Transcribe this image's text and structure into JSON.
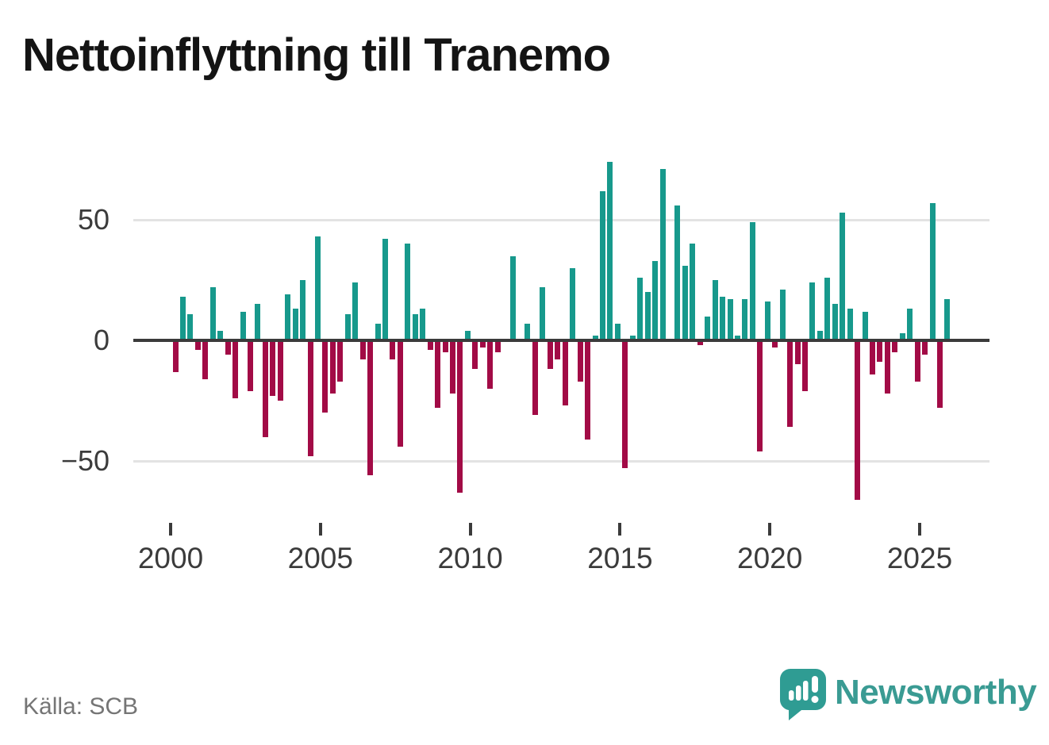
{
  "page": {
    "title": "Nettoinflyttning till Tranemo",
    "source": "Källa: SCB"
  },
  "branding": {
    "logo_text": "Newsworthy",
    "logo_color": "#3a9b93"
  },
  "chart_data": {
    "type": "bar",
    "title": "Nettoinflyttning till Tranemo",
    "frequency": "quarterly",
    "period_start": "2000-Q1",
    "period_end": "2025-Q4",
    "values": [
      -13,
      18,
      11,
      -4,
      -16,
      22,
      4,
      -6,
      -24,
      12,
      -21,
      15,
      -40,
      -23,
      -25,
      19,
      13,
      25,
      -48,
      43,
      -30,
      -22,
      -17,
      11,
      24,
      -8,
      -56,
      7,
      42,
      -8,
      -44,
      40,
      11,
      13,
      -4,
      -28,
      -5,
      -22,
      -63,
      4,
      -12,
      -3,
      -20,
      -5,
      0,
      35,
      0,
      7,
      -31,
      22,
      -12,
      -8,
      -27,
      30,
      -17,
      -41,
      2,
      62,
      74,
      7,
      -53,
      2,
      26,
      20,
      33,
      71,
      0,
      56,
      31,
      40,
      -2,
      10,
      25,
      18,
      17,
      2,
      17,
      49,
      -46,
      16,
      -3,
      21,
      -36,
      -10,
      -21,
      24,
      4,
      26,
      15,
      53,
      13,
      -66,
      12,
      -14,
      -9,
      -22,
      -5,
      3,
      13,
      -17,
      -6,
      57,
      -28,
      17
    ],
    "positive_color": "#17998c",
    "negative_color": "#a20b46",
    "yticks": [
      50,
      0,
      -50
    ],
    "ytick_labels": [
      "50",
      "0",
      "−50"
    ],
    "xtick_labels": [
      "2000",
      "2005",
      "2010",
      "2015",
      "2020",
      "2025"
    ],
    "ylim": [
      -70,
      80
    ],
    "grid": "horizontal",
    "legend": "none",
    "axis_color": "#3b3b3b",
    "gridline_color": "#e3e3e3"
  }
}
